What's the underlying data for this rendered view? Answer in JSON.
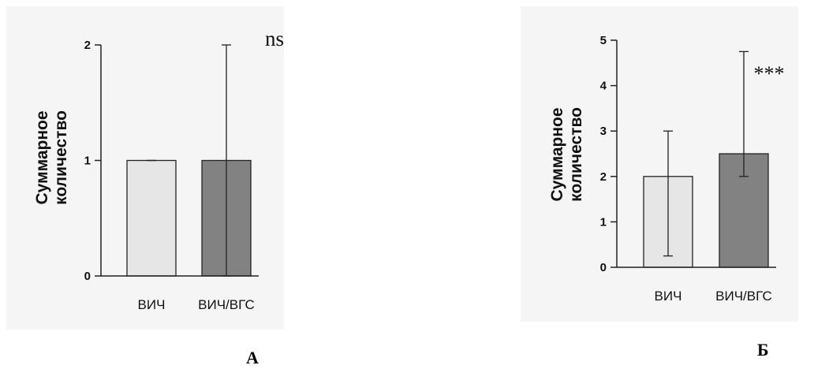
{
  "chart_data": [
    {
      "type": "bar",
      "panel_label": "А",
      "categories": [
        "ВИЧ",
        "ВИЧ/ВГС"
      ],
      "values": [
        1,
        1
      ],
      "error_low": [
        1,
        0
      ],
      "error_high": [
        1,
        2
      ],
      "ylabel_lines": [
        "Суммарное",
        "количество"
      ],
      "yticks": [
        "0",
        "1",
        "2"
      ],
      "ylim": [
        0,
        2
      ],
      "significance": "ns",
      "bar_colors": [
        "#e6e6e6",
        "#828282"
      ],
      "grid": false,
      "legend": "none"
    },
    {
      "type": "bar",
      "panel_label": "Б",
      "categories": [
        "ВИЧ",
        "ВИЧ/ВГС"
      ],
      "values": [
        2,
        2.5
      ],
      "error_low": [
        0.25,
        2
      ],
      "error_high": [
        3,
        4.75
      ],
      "ylabel_lines": [
        "Суммарное",
        "количество"
      ],
      "yticks": [
        "0",
        "1",
        "2",
        "3",
        "4",
        "5"
      ],
      "ylim": [
        0,
        5
      ],
      "significance": "***",
      "bar_colors": [
        "#e6e6e6",
        "#828282"
      ],
      "grid": false,
      "legend": "none"
    }
  ]
}
